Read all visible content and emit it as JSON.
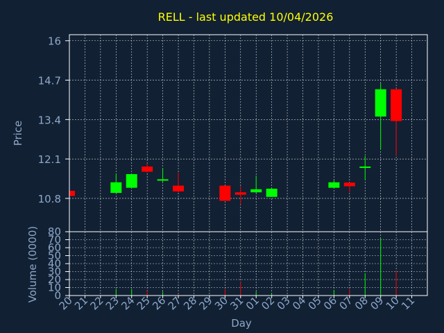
{
  "chart_data": {
    "type": "candlestick",
    "title": "RELL - last updated 10/04/2026",
    "xlabel": "Day",
    "ylabel_price": "Price",
    "ylabel_volume": "Volume (0000)",
    "price_ticks": [
      10.8,
      12.1,
      13.4,
      14.7,
      16
    ],
    "price_ylim": [
      9.7,
      16.2
    ],
    "volume_ticks": [
      0,
      10,
      20,
      30,
      40,
      50,
      60,
      70,
      80
    ],
    "volume_ylim": [
      0,
      80
    ],
    "grid": true,
    "x_labels": [
      "20",
      "21",
      "22",
      "23",
      "24",
      "25",
      "26",
      "27",
      "28",
      "29",
      "30",
      "31",
      "01",
      "02",
      "03",
      "04",
      "05",
      "06",
      "07",
      "08",
      "09",
      "10",
      "11"
    ],
    "candles": [
      {
        "day": "20",
        "open": 11.05,
        "high": 11.05,
        "low": 10.88,
        "close": 10.88,
        "volume": 0
      },
      {
        "day": "23",
        "open": 10.98,
        "high": 11.62,
        "low": 10.98,
        "close": 11.33,
        "volume": 8
      },
      {
        "day": "24",
        "open": 11.15,
        "high": 11.6,
        "low": 11.15,
        "close": 11.6,
        "volume": 8
      },
      {
        "day": "25",
        "open": 11.85,
        "high": 11.95,
        "low": 11.65,
        "close": 11.68,
        "volume": 6
      },
      {
        "day": "26",
        "open": 11.43,
        "high": 11.8,
        "low": 11.35,
        "close": 11.43,
        "volume": 5
      },
      {
        "day": "27",
        "open": 11.22,
        "high": 11.65,
        "low": 11.0,
        "close": 11.03,
        "volume": 2
      },
      {
        "day": "30",
        "open": 11.22,
        "high": 11.22,
        "low": 10.72,
        "close": 10.72,
        "volume": 8
      },
      {
        "day": "31",
        "open": 11.0,
        "high": 11.2,
        "low": 10.6,
        "close": 10.92,
        "volume": 17
      },
      {
        "day": "01",
        "open": 11.0,
        "high": 11.55,
        "low": 10.98,
        "close": 11.1,
        "volume": 5
      },
      {
        "day": "02",
        "open": 10.85,
        "high": 11.15,
        "low": 10.85,
        "close": 11.12,
        "volume": 3
      },
      {
        "day": "06",
        "open": 11.15,
        "high": 11.4,
        "low": 11.15,
        "close": 11.33,
        "volume": 7
      },
      {
        "day": "07",
        "open": 11.32,
        "high": 11.32,
        "low": 11.0,
        "close": 11.2,
        "volume": 8
      },
      {
        "day": "08",
        "open": 11.83,
        "high": 12.2,
        "low": 11.4,
        "close": 11.85,
        "volume": 28
      },
      {
        "day": "09",
        "open": 13.5,
        "high": 14.6,
        "low": 12.4,
        "close": 14.4,
        "volume": 72
      },
      {
        "day": "10",
        "open": 14.4,
        "high": 14.4,
        "low": 12.2,
        "close": 13.35,
        "volume": 31
      }
    ],
    "colors": {
      "up": "#00ff00",
      "down": "#ff0000",
      "background": "#112033",
      "text": "#8ea8c8",
      "title": "#ffff00",
      "grid": "#ffffff",
      "axis": "#ffffff"
    }
  }
}
